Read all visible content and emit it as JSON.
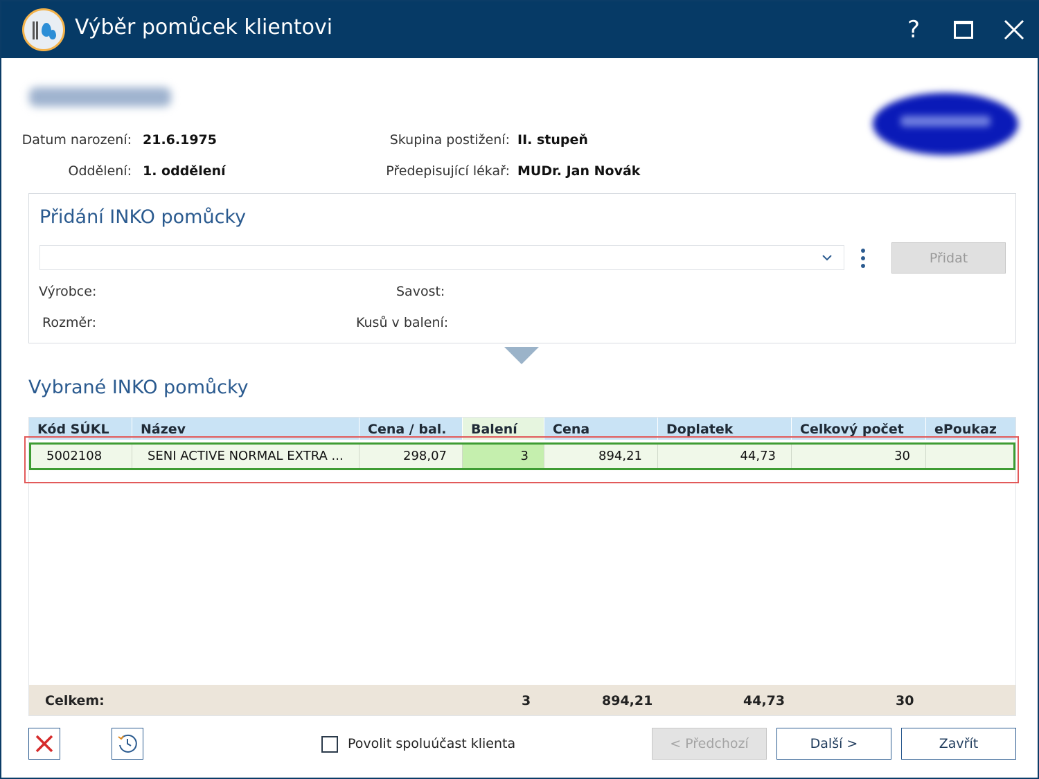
{
  "window": {
    "title": "Výběr pomůcek klientovi",
    "help_label": "?"
  },
  "patient": {
    "birth_label": "Datum narození:",
    "birth_value": "21.6.1975",
    "dept_label": "Oddělení:",
    "dept_value": "1. oddělení",
    "group_label": "Skupina postižení:",
    "group_value": "II. stupeň",
    "doctor_label": "Předepisující lékař:",
    "doctor_value": "MUDr. Jan Novák"
  },
  "add_panel": {
    "title": "Přidání INKO pomůcky",
    "combo_value": "",
    "add_button": "Přidat",
    "manufacturer_label": "Výrobce:",
    "absorbency_label": "Savost:",
    "size_label": "Rozměr:",
    "pieces_label": "Kusů v balení:"
  },
  "selected": {
    "title": "Vybrané INKO pomůcky",
    "columns": [
      "Kód SÚKL",
      "Název",
      "Cena / bal.",
      "Balení",
      "Cena",
      "Doplatek",
      "Celkový počet",
      "ePoukaz"
    ],
    "rows": [
      [
        "5002108",
        "SENI ACTIVE NORMAL EXTRA ...",
        "298,07",
        "3",
        "894,21",
        "44,73",
        "30",
        ""
      ]
    ],
    "total": {
      "label": "Celkem:",
      "baleni": "3",
      "cena": "894,21",
      "doplatek": "44,73",
      "pocet": "30"
    }
  },
  "footer": {
    "checkbox_label": "Povolit spoluúčast klienta",
    "checkbox_checked": false,
    "prev_button": "< Předchozí",
    "next_button": "Další >",
    "close_button": "Zavřít"
  },
  "colors": {
    "titlebar": "#063a66",
    "accent": "#2a5a8f",
    "header_bg": "#c9e3f5",
    "selected_row_border": "#3e9c33",
    "selection_outline": "#e25a5a",
    "total_bg": "#ece5da",
    "delete_icon": "#d62b2b"
  },
  "icons": {
    "app": "incontinence-drops-icon",
    "help": "question-icon",
    "maximize": "maximize-icon",
    "close": "close-icon",
    "dropdown": "chevron-down-icon",
    "more": "kebab-menu-icon",
    "delete": "delete-x-icon",
    "history": "history-clock-icon"
  }
}
